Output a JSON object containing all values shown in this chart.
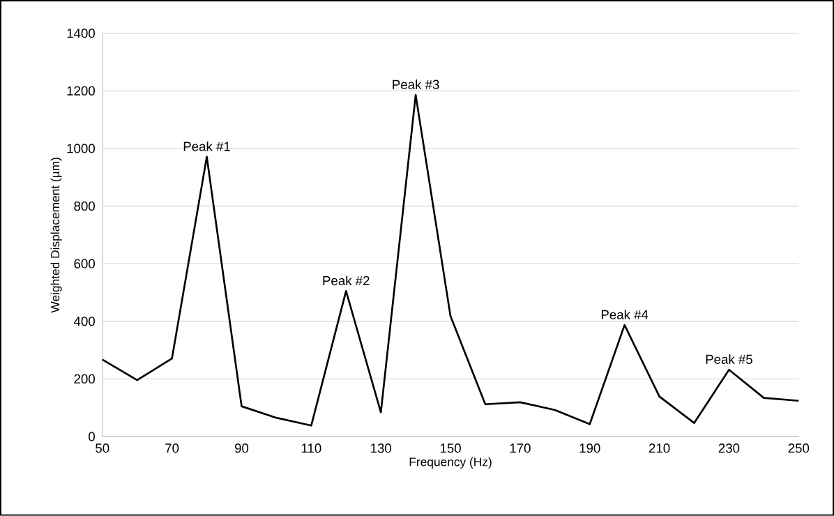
{
  "chart_data": {
    "type": "line",
    "xlabel": "Frequency (Hz)",
    "ylabel": "Weighted Displacement (µm)",
    "x": [
      50,
      60,
      70,
      80,
      90,
      100,
      110,
      120,
      130,
      140,
      150,
      160,
      170,
      180,
      190,
      200,
      210,
      220,
      230,
      240,
      250
    ],
    "values": [
      267,
      196,
      271,
      971,
      105,
      65,
      38,
      505,
      84,
      1186,
      418,
      112,
      119,
      92,
      43,
      387,
      139,
      47,
      232,
      134,
      124
    ],
    "color": "#000000",
    "line_style": "solid",
    "xlim": [
      50,
      250
    ],
    "xticks": [
      50,
      70,
      90,
      110,
      130,
      150,
      170,
      190,
      210,
      230,
      250
    ],
    "ylim": [
      0,
      1400
    ],
    "yticks": [
      0,
      200,
      400,
      600,
      800,
      1000,
      1200,
      1400
    ],
    "grid": "y",
    "annotations": [
      {
        "text": "Peak #1",
        "x": 80,
        "y": 971
      },
      {
        "text": "Peak #2",
        "x": 120,
        "y": 505
      },
      {
        "text": "Peak #3",
        "x": 140,
        "y": 1186
      },
      {
        "text": "Peak #4",
        "x": 200,
        "y": 387
      },
      {
        "text": "Peak #5",
        "x": 230,
        "y": 232
      }
    ]
  }
}
